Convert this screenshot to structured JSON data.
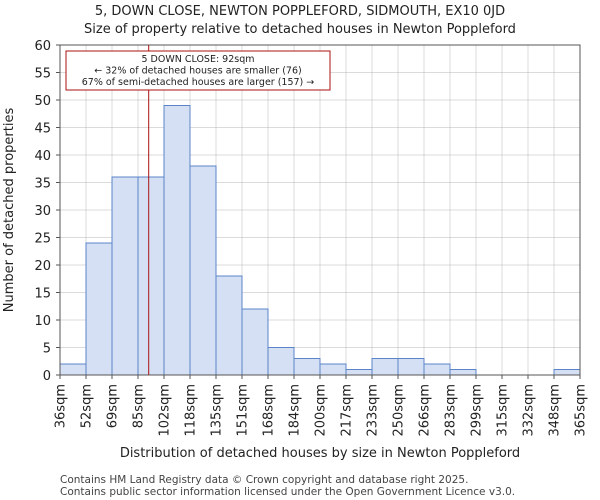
{
  "chart_data": {
    "type": "bar",
    "title_line1": "5, DOWN CLOSE, NEWTON POPPLEFORD, SIDMOUTH, EX10 0JD",
    "title_line2": "Size of property relative to detached houses in Newton Poppleford",
    "xlabel": "Distribution of detached houses by size in Newton Poppleford",
    "ylabel": "Number of detached properties",
    "bin_edges": [
      36,
      52,
      69,
      85,
      102,
      118,
      135,
      151,
      168,
      184,
      200,
      217,
      233,
      250,
      266,
      283,
      299,
      315,
      332,
      348,
      365
    ],
    "tick_labels": [
      "36sqm",
      "52sqm",
      "69sqm",
      "85sqm",
      "102sqm",
      "118sqm",
      "135sqm",
      "151sqm",
      "168sqm",
      "184sqm",
      "200sqm",
      "217sqm",
      "233sqm",
      "250sqm",
      "266sqm",
      "283sqm",
      "299sqm",
      "315sqm",
      "332sqm",
      "348sqm",
      "365sqm"
    ],
    "values": [
      2,
      24,
      36,
      36,
      49,
      38,
      18,
      12,
      5,
      3,
      2,
      1,
      3,
      3,
      2,
      1,
      0,
      0,
      0,
      1
    ],
    "ylim": [
      0,
      60
    ],
    "yticks": [
      0,
      5,
      10,
      15,
      20,
      25,
      30,
      35,
      40,
      45,
      50,
      55,
      60
    ],
    "grid": true,
    "marker": {
      "value": 92,
      "color": "#aa1111",
      "lines": [
        "5 DOWN CLOSE: 92sqm",
        "← 32% of detached houses are smaller (76)",
        "67% of semi-detached houses are larger (157) →"
      ]
    },
    "footer_line1": "Contains HM Land Registry data © Crown copyright and database right 2025.",
    "footer_line2": "Contains public sector information licensed under the Open Government Licence v3.0."
  }
}
